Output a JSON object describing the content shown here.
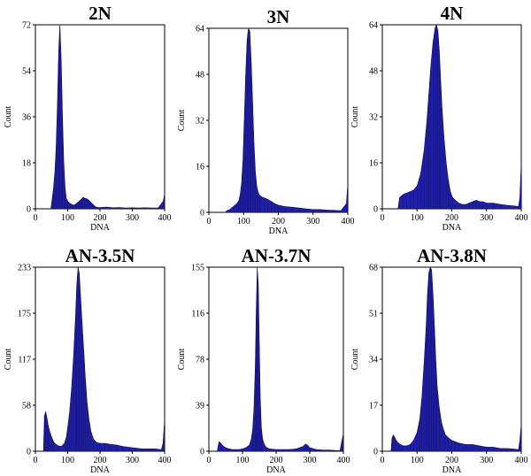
{
  "colors": {
    "fill": "#1f1fa8",
    "edge": "#10105a"
  },
  "chart_data": [
    {
      "type": "area",
      "title": "2N",
      "xlabel": "DNA",
      "ylabel": "Count",
      "xlim": [
        0,
        400
      ],
      "ylim": [
        0,
        72
      ],
      "xticks": [
        "0",
        "100",
        "200",
        "300",
        "400"
      ],
      "yticks": [
        "0",
        "18",
        "36",
        "54",
        "72"
      ],
      "x": [
        48,
        52,
        56,
        60,
        64,
        68,
        72,
        76,
        80,
        84,
        88,
        92,
        96,
        100,
        104,
        108,
        112,
        116,
        120,
        124,
        128,
        132,
        136,
        140,
        144,
        148,
        152,
        156,
        160,
        164,
        168,
        172,
        176,
        180,
        184,
        190,
        200,
        220,
        240,
        260,
        280,
        300,
        320,
        340,
        360,
        380,
        396,
        400
      ],
      "y": [
        0,
        4,
        8,
        14,
        24,
        40,
        62,
        73,
        58,
        35,
        18,
        8,
        4,
        3,
        2.5,
        2,
        1.8,
        1.5,
        1.5,
        1.8,
        2.2,
        2.6,
        3,
        3.5,
        4,
        4.5,
        4.2,
        4,
        3.8,
        3.5,
        3,
        2.5,
        2,
        1.5,
        1,
        0.6,
        0.5,
        0.7,
        0.4,
        0.5,
        0.3,
        0.4,
        0.3,
        0.4,
        0.3,
        0.3,
        3,
        6
      ]
    },
    {
      "type": "area",
      "title": "3N",
      "xlabel": "DNA",
      "ylabel": "Count",
      "xlim": [
        0,
        400
      ],
      "ylim": [
        0,
        64
      ],
      "xticks": [
        "0",
        "100",
        "200",
        "300",
        "400"
      ],
      "yticks": [
        "0",
        "16",
        "32",
        "48",
        "64"
      ],
      "x": [
        50,
        60,
        70,
        80,
        86,
        90,
        94,
        98,
        102,
        106,
        110,
        114,
        118,
        122,
        126,
        130,
        134,
        138,
        142,
        146,
        150,
        160,
        170,
        180,
        190,
        200,
        220,
        240,
        260,
        280,
        300,
        320,
        340,
        360,
        380,
        396,
        400
      ],
      "y": [
        0.5,
        1,
        2,
        3,
        4,
        6,
        10,
        18,
        32,
        48,
        60,
        65,
        63,
        52,
        38,
        24,
        14,
        9,
        7,
        6,
        5.5,
        5,
        4.5,
        3.8,
        3,
        2.5,
        2,
        1.8,
        1.5,
        1.2,
        1,
        1,
        0.8,
        0.7,
        0.6,
        3,
        10
      ]
    },
    {
      "type": "area",
      "title": "4N",
      "xlabel": "DNA",
      "ylabel": "Count",
      "xlim": [
        0,
        400
      ],
      "ylim": [
        0,
        64
      ],
      "xticks": [
        "0",
        "100",
        "200",
        "300",
        "400"
      ],
      "yticks": [
        "0",
        "16",
        "32",
        "48",
        "64"
      ],
      "x": [
        45,
        50,
        60,
        70,
        80,
        90,
        100,
        110,
        120,
        128,
        134,
        140,
        146,
        152,
        156,
        160,
        164,
        168,
        172,
        178,
        184,
        190,
        196,
        202,
        210,
        220,
        230,
        240,
        250,
        260,
        270,
        280,
        290,
        300,
        320,
        340,
        360,
        380,
        392,
        396,
        400
      ],
      "y": [
        0,
        4,
        5,
        5.5,
        6,
        6.5,
        8,
        12,
        20,
        30,
        40,
        50,
        58,
        63,
        65,
        62,
        55,
        45,
        35,
        24,
        16,
        10,
        6,
        4,
        3,
        2,
        1.5,
        1.5,
        2,
        2.5,
        3,
        2.5,
        2.5,
        2,
        2,
        1.5,
        1.2,
        1,
        0.8,
        4,
        16
      ]
    },
    {
      "type": "area",
      "title": "AN-3.5N",
      "xlabel": "DNA",
      "ylabel": "Count",
      "xlim": [
        0,
        400
      ],
      "ylim": [
        0,
        233
      ],
      "xticks": [
        "0",
        "100",
        "200",
        "300",
        "400"
      ],
      "yticks": [
        "0",
        "58",
        "117",
        "175",
        "233"
      ],
      "x": [
        25,
        28,
        32,
        36,
        40,
        45,
        50,
        55,
        60,
        70,
        80,
        90,
        96,
        100,
        106,
        112,
        118,
        124,
        128,
        132,
        136,
        140,
        145,
        150,
        155,
        160,
        166,
        172,
        180,
        190,
        200,
        215,
        230,
        250,
        270,
        290,
        310,
        330,
        350,
        370,
        390,
        395,
        400
      ],
      "y": [
        0,
        45,
        50,
        42,
        32,
        24,
        18,
        13,
        10,
        7,
        6,
        10,
        18,
        30,
        50,
        80,
        120,
        170,
        210,
        235,
        225,
        195,
        160,
        125,
        90,
        62,
        40,
        25,
        15,
        11,
        10,
        10,
        9,
        8,
        6,
        5,
        4,
        3,
        3,
        3,
        2,
        10,
        40
      ]
    },
    {
      "type": "area",
      "title": "AN-3.7N",
      "xlabel": "DNA",
      "ylabel": "Count",
      "xlim": [
        0,
        400
      ],
      "ylim": [
        0,
        155
      ],
      "xticks": [
        "0",
        "100",
        "200",
        "300",
        "400"
      ],
      "yticks": [
        "0",
        "39",
        "78",
        "116",
        "155"
      ],
      "x": [
        25,
        30,
        35,
        40,
        50,
        60,
        70,
        80,
        90,
        100,
        110,
        120,
        126,
        130,
        134,
        138,
        141,
        144,
        147,
        150,
        153,
        156,
        160,
        166,
        172,
        180,
        200,
        220,
        240,
        260,
        280,
        288,
        294,
        300,
        320,
        340,
        360,
        380,
        390,
        395,
        400
      ],
      "y": [
        0,
        8,
        7,
        5,
        3,
        2,
        1.5,
        1.5,
        1.5,
        2,
        3,
        5,
        10,
        18,
        35,
        70,
        120,
        160,
        140,
        90,
        45,
        20,
        10,
        5,
        3,
        2,
        1.5,
        1.5,
        1.5,
        2,
        4,
        6,
        5,
        3,
        1.5,
        1,
        1,
        0.5,
        0.5,
        8,
        15
      ]
    },
    {
      "type": "area",
      "title": "AN-3.8N",
      "xlabel": "DNA",
      "ylabel": "Count",
      "xlim": [
        0,
        400
      ],
      "ylim": [
        0,
        68
      ],
      "xticks": [
        "0",
        "100",
        "200",
        "300",
        "400"
      ],
      "yticks": [
        "0",
        "17",
        "34",
        "51",
        "68"
      ],
      "x": [
        25,
        28,
        32,
        36,
        40,
        46,
        52,
        60,
        70,
        80,
        90,
        100,
        108,
        114,
        120,
        126,
        130,
        134,
        138,
        142,
        146,
        150,
        154,
        158,
        164,
        170,
        176,
        182,
        190,
        200,
        210,
        220,
        240,
        260,
        280,
        300,
        320,
        340,
        360,
        380,
        392,
        396,
        400
      ],
      "y": [
        0,
        5,
        6,
        5,
        4,
        3,
        2.5,
        2,
        2,
        2.5,
        4,
        7,
        12,
        20,
        32,
        46,
        58,
        66,
        70,
        67,
        58,
        46,
        34,
        24,
        16,
        11,
        8,
        6,
        5,
        4,
        3.5,
        3,
        2.5,
        2.5,
        2,
        1.5,
        1.5,
        1,
        1,
        0.8,
        0.6,
        4,
        10
      ]
    }
  ]
}
